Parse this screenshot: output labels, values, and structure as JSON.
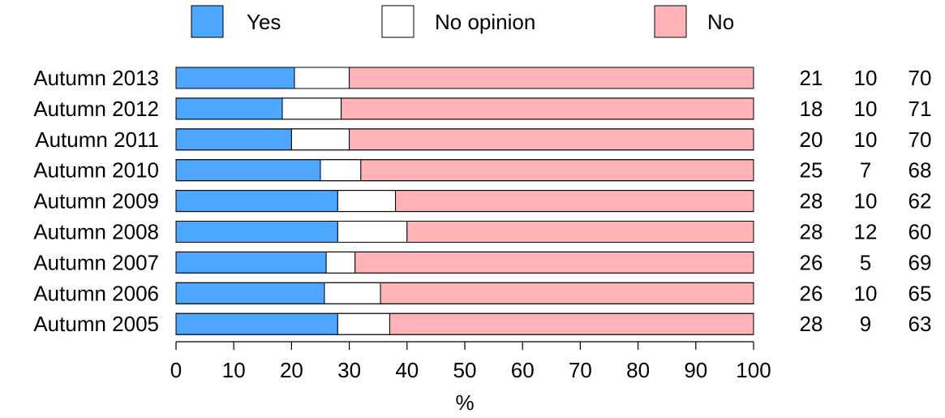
{
  "chart_data": {
    "type": "bar",
    "orientation": "horizontal",
    "stacked": true,
    "categories": [
      "Autumn 2013",
      "Autumn 2012",
      "Autumn 2011",
      "Autumn 2010",
      "Autumn 2009",
      "Autumn 2008",
      "Autumn 2007",
      "Autumn 2006",
      "Autumn 2005"
    ],
    "series": [
      {
        "name": "Yes",
        "color": "#4da6ff",
        "values": [
          20.5,
          18.4,
          20.0,
          25.0,
          28.0,
          28.0,
          26.0,
          25.7,
          28.0
        ]
      },
      {
        "name": "No opinion",
        "color": "#ffffff",
        "values": [
          9.5,
          10.2,
          10.0,
          7.0,
          10.0,
          12.0,
          5.0,
          9.7,
          9.0
        ]
      },
      {
        "name": "No",
        "color": "#ffb3b7",
        "values": [
          70.0,
          71.4,
          70.0,
          68.0,
          62.0,
          60.0,
          69.0,
          64.6,
          63.0
        ]
      }
    ],
    "value_labels": [
      [
        "21",
        "10",
        "70"
      ],
      [
        "18",
        "10",
        "71"
      ],
      [
        "20",
        "10",
        "70"
      ],
      [
        "25",
        "7",
        "68"
      ],
      [
        "28",
        "10",
        "62"
      ],
      [
        "28",
        "12",
        "60"
      ],
      [
        "26",
        "5",
        "69"
      ],
      [
        "26",
        "10",
        "65"
      ],
      [
        "28",
        "9",
        "63"
      ]
    ],
    "xlabel": "%",
    "ylabel": "",
    "xlim": [
      0,
      100
    ],
    "xticks": [
      0,
      10,
      20,
      30,
      40,
      50,
      60,
      70,
      80,
      90,
      100
    ],
    "legend_position": "top",
    "grid": false
  }
}
